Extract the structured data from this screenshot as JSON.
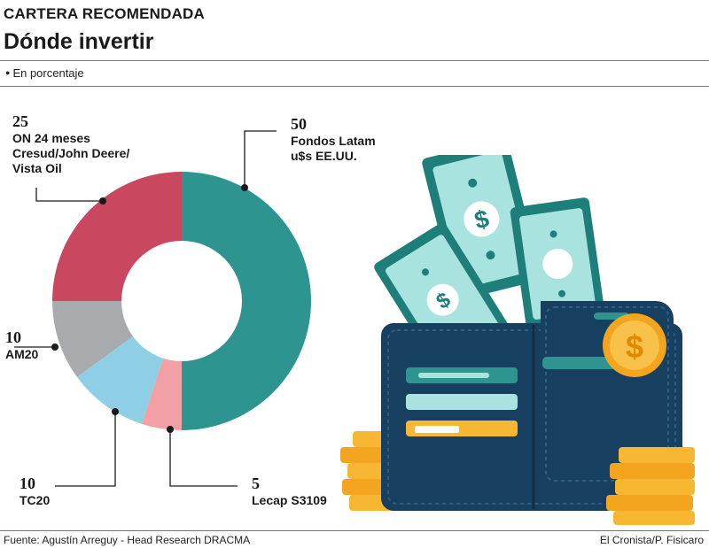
{
  "header": {
    "kicker": "CARTERA RECOMENDADA",
    "title": "Dónde invertir",
    "unit_note": "En porcentaje"
  },
  "footer": {
    "source": "Fuente: Agustín Arreguy - Head Research DRACMA",
    "credit": "El Cronista/P. Fisicaro"
  },
  "colors": {
    "fondos": "#2e9490",
    "lecap": "#f2a0a5",
    "tc20": "#8ecfe6",
    "am20": "#a9aaad",
    "on": "#c9475f",
    "wallet": "#173f5f",
    "bill": "#a9e3df",
    "bill_dark": "#1e7e79",
    "coin": "#f7b733"
  },
  "chart_data": {
    "type": "pie",
    "title": "Dónde invertir",
    "unit": "En porcentaje",
    "slices": [
      {
        "value": 50,
        "label_lines": [
          "Fondos Latam",
          "u$s EE.UU."
        ],
        "color": "#2e9490"
      },
      {
        "value": 5,
        "label_lines": [
          "Lecap S3109"
        ],
        "color": "#f2a0a5"
      },
      {
        "value": 10,
        "label_lines": [
          "TC20"
        ],
        "color": "#8ecfe6"
      },
      {
        "value": 10,
        "label_lines": [
          "AM20"
        ],
        "color": "#a9aaad"
      },
      {
        "value": 25,
        "label_lines": [
          "ON 24 meses",
          "Cresud/John Deere/",
          "Vista Oil"
        ],
        "color": "#c9475f"
      }
    ]
  },
  "illustration": {
    "icon": "wallet-with-dollar-bills-and-coins-icon"
  }
}
